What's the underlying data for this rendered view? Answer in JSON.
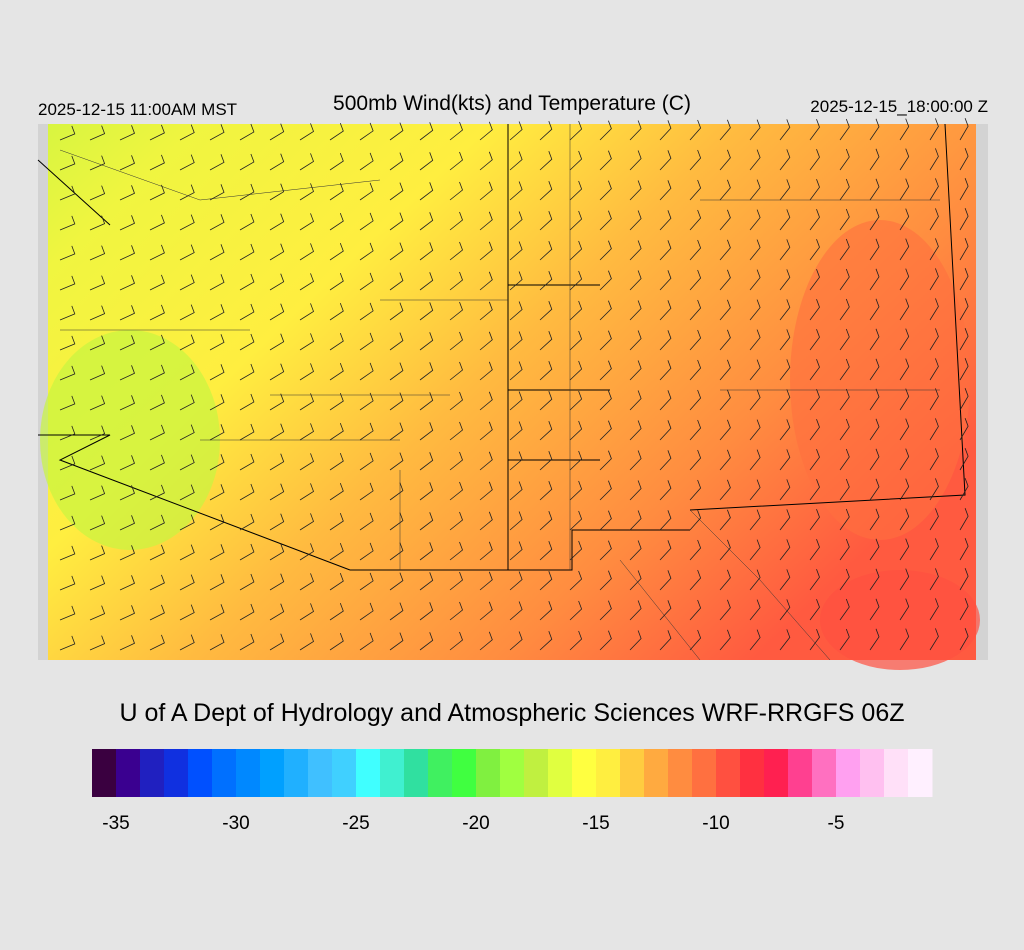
{
  "header": {
    "valid_local": "2025-12-15 11:00AM MST",
    "title": "500mb Wind(kts) and Temperature (C)",
    "valid_utc": "2025-12-15_18:00:00 Z"
  },
  "credit": "U of A Dept of Hydrology and Atmospheric Sciences WRF-RRGFS 06Z",
  "colorbar": {
    "range": [
      -36,
      -1
    ],
    "ticks": [
      -35,
      -30,
      -25,
      -20,
      -15,
      -10,
      -5
    ],
    "colors": [
      "#3a0040",
      "#3a0090",
      "#2020c0",
      "#1030e0",
      "#0050ff",
      "#0070ff",
      "#0088ff",
      "#00a0ff",
      "#20b0ff",
      "#40c0ff",
      "#40d0ff",
      "#40ffff",
      "#40f0d0",
      "#30e0a0",
      "#40f060",
      "#40ff40",
      "#80f040",
      "#a0ff40",
      "#c0f040",
      "#e0ff40",
      "#ffff40",
      "#ffee40",
      "#ffcc40",
      "#ffaa40",
      "#ff8c40",
      "#ff7040",
      "#ff5040",
      "#ff3040",
      "#ff2050",
      "#ff4090",
      "#ff70c0",
      "#ffa0f0",
      "#ffc0f0",
      "#ffe0f8",
      "#fff0ff"
    ]
  }
}
